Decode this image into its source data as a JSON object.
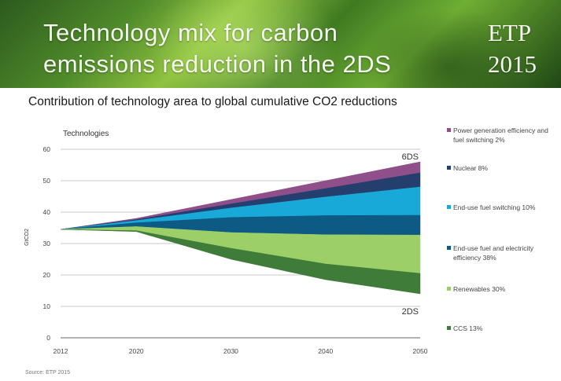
{
  "banner": {
    "title_line1": "Technology mix for carbon",
    "title_line2": "emissions reduction in the 2DS",
    "badge_line1": "ETP",
    "badge_line2": "2015"
  },
  "subtitle": "Contribution of technology area to global cumulative CO2 reductions",
  "source": "Source: ETP 2015",
  "chart_data": {
    "type": "area",
    "title": "Technologies",
    "ylabel": "GtCO2",
    "xlabel": "",
    "x": [
      2012,
      2020,
      2030,
      2040,
      2050
    ],
    "x_ticks": [
      "2012",
      "2020",
      "2030",
      "2040",
      "2050"
    ],
    "y_ticks": [
      "0",
      "10",
      "20",
      "30",
      "40",
      "50",
      "60"
    ],
    "ylim": [
      0,
      60
    ],
    "grid": true,
    "legend_position": "right",
    "boundaries": {
      "6DS": [
        34.5,
        38,
        44,
        50,
        56
      ],
      "power_top": [
        34.5,
        37.6,
        42.6,
        47.5,
        52.5
      ],
      "nuclear_top": [
        34.5,
        37.3,
        41.3,
        44.8,
        48
      ],
      "enduse_switch_top": [
        34.5,
        36.6,
        38.3,
        38.9,
        39
      ],
      "efficiency_top": [
        34.5,
        35.4,
        33.5,
        32.8,
        32.7
      ],
      "renewables_top": [
        34.5,
        34.1,
        28.5,
        23.5,
        20.5
      ],
      "2DS": [
        34.5,
        33.8,
        25,
        18.5,
        14
      ]
    },
    "series": [
      {
        "name": "Power generation efficiency and fuel switching 2%",
        "color": "#8e4f8b",
        "lower": "power_top",
        "upper": "6DS"
      },
      {
        "name": "Nuclear 8%",
        "color": "#243f6e",
        "lower": "nuclear_top",
        "upper": "power_top"
      },
      {
        "name": "End-use fuel switching 10%",
        "color": "#18a9d8",
        "lower": "enduse_switch_top",
        "upper": "nuclear_top"
      },
      {
        "name": "End-use fuel and electricity efficiency 38%",
        "color": "#0d5a84",
        "lower": "efficiency_top",
        "upper": "enduse_switch_top"
      },
      {
        "name": "Renewables 30%",
        "color": "#9ccf68",
        "lower": "renewables_top",
        "upper": "efficiency_top"
      },
      {
        "name": "CCS 13%",
        "color": "#3f7c3a",
        "lower": "2DS",
        "upper": "renewables_top"
      }
    ],
    "annotations": [
      "6DS",
      "2DS"
    ]
  }
}
